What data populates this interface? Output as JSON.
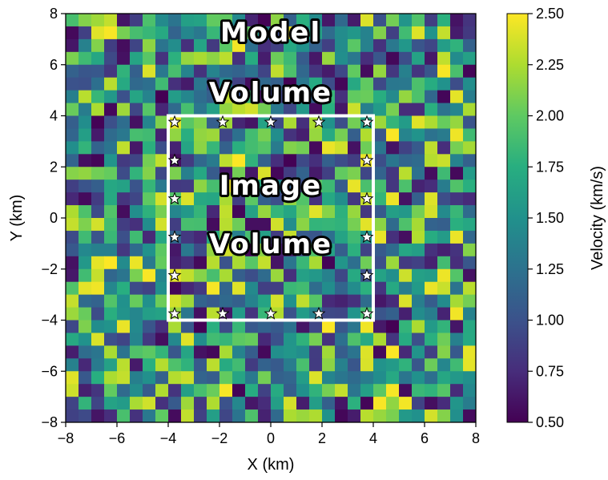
{
  "chart_data": {
    "type": "heatmap",
    "xlabel": "X (km)",
    "ylabel": "Y (km)",
    "xlim": [
      -8,
      8
    ],
    "ylim": [
      -8,
      8
    ],
    "xticks": [
      "−8",
      "−6",
      "−4",
      "−2",
      "0",
      "2",
      "4",
      "6",
      "8"
    ],
    "yticks": [
      "−8",
      "−6",
      "−4",
      "−2",
      "0",
      "2",
      "4",
      "6",
      "8"
    ],
    "grid": false,
    "grid_cells": [
      32,
      32
    ],
    "colormap": "viridis",
    "colorbar": {
      "label": "Velocity (km/s)",
      "range": [
        0.5,
        2.5
      ],
      "ticks": [
        "0.50",
        "0.75",
        "1.00",
        "1.25",
        "1.50",
        "1.75",
        "2.00",
        "2.25",
        "2.50"
      ]
    },
    "annotations": [
      "Model",
      "Volume",
      "Image",
      "Volume"
    ],
    "image_box": {
      "x": [
        -4,
        4
      ],
      "y": [
        -4,
        4
      ],
      "color": "#ffffff"
    },
    "stations": [
      [
        -3.75,
        3.75
      ],
      [
        -1.875,
        3.75
      ],
      [
        0,
        3.75
      ],
      [
        1.875,
        3.75
      ],
      [
        3.75,
        3.75
      ],
      [
        -3.75,
        2.25
      ],
      [
        3.75,
        2.25
      ],
      [
        -3.75,
        0.75
      ],
      [
        3.75,
        0.75
      ],
      [
        -3.75,
        -0.75
      ],
      [
        3.75,
        -0.75
      ],
      [
        -3.75,
        -2.25
      ],
      [
        3.75,
        -2.25
      ],
      [
        -3.75,
        -3.75
      ],
      [
        -1.875,
        -3.75
      ],
      [
        0,
        -3.75
      ],
      [
        1.875,
        -3.75
      ],
      [
        3.75,
        -3.75
      ]
    ]
  }
}
